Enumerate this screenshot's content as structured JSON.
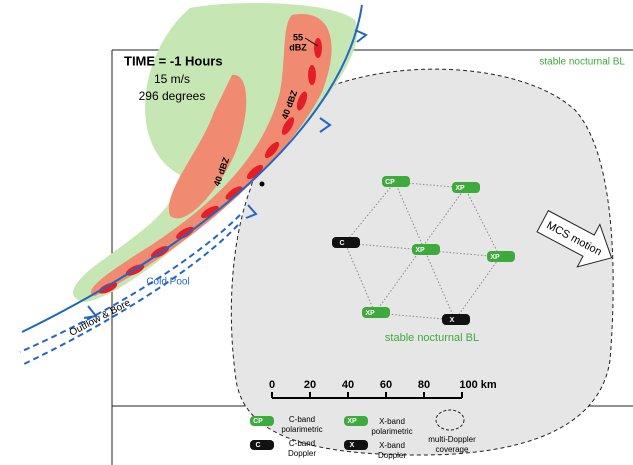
{
  "header": {
    "time": "TIME = -1 Hours",
    "speed": "15 m/s",
    "direction": "296 degrees"
  },
  "labels": {
    "dbz55_top": "55",
    "dbz55_bottom": "dBZ",
    "dbz40_upper": "40 dBZ",
    "dbz40_lower": "40 dBZ",
    "stable_bl_top": "stable nocturnal BL",
    "stable_bl_center": "stable nocturnal BL",
    "cold_pool": "Cold Pool",
    "outflow": "Outflow & Bore",
    "mcs_motion": "MCS motion"
  },
  "radars": [
    {
      "label": "CP"
    },
    {
      "label": "XP"
    },
    {
      "label": "C"
    },
    {
      "label": "XP"
    },
    {
      "label": "XP"
    },
    {
      "label": "XP"
    },
    {
      "label": "X"
    }
  ],
  "scale": {
    "ticks": [
      "0",
      "20",
      "40",
      "60",
      "80",
      "100 km"
    ]
  },
  "legend": {
    "c_pol": {
      "icon": "CP",
      "line1": "C-band",
      "line2": "polarimetric"
    },
    "x_pol": {
      "icon": "XP",
      "line1": "X-band",
      "line2": "polarimetric"
    },
    "coverage": {
      "line1": "multi-Doppler",
      "line2": "coverage"
    },
    "c_dop": {
      "icon": "C",
      "line1": "C-band",
      "line2": "Doppler"
    },
    "x_dop": {
      "icon": "X",
      "line1": "X-band",
      "line2": "Doppler"
    }
  }
}
